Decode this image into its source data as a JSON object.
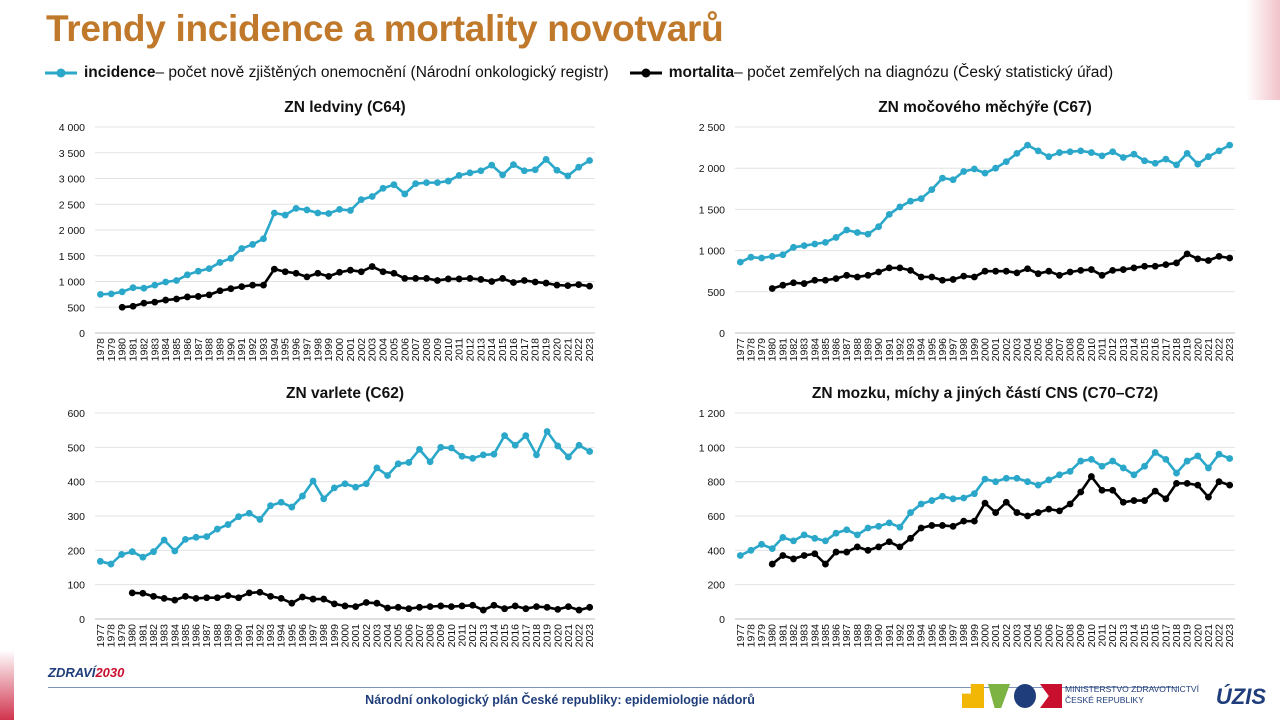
{
  "title": "Trendy incidence a mortality novotvarů",
  "legend": {
    "incidence_bold": "incidence",
    "incidence_rest": " – počet nově zjištěných onemocnění (Národní onkologický registr)",
    "mortalita_bold": "mortalita",
    "mortalita_rest": " – počet zemřelých na diagnózu (Český statistický úřad)",
    "incidence_color": "#2aa7c9",
    "mortalita_color": "#000000"
  },
  "chart_data": [
    {
      "type": "line",
      "title": "ZN ledviny (C64)",
      "x": [
        1978,
        1979,
        1980,
        1981,
        1982,
        1983,
        1984,
        1985,
        1986,
        1987,
        1988,
        1989,
        1990,
        1991,
        1992,
        1993,
        1994,
        1995,
        1996,
        1997,
        1998,
        1999,
        2000,
        2001,
        2002,
        2003,
        2004,
        2005,
        2006,
        2007,
        2008,
        2009,
        2010,
        2011,
        2012,
        2013,
        2014,
        2015,
        2016,
        2017,
        2018,
        2019,
        2020,
        2021,
        2022,
        2023
      ],
      "x_tick_labels": [
        "1978",
        "1979",
        "1980",
        "1981",
        "1982",
        "1983",
        "1984",
        "1985",
        "1986",
        "1987",
        "1988",
        "1989",
        "1990",
        "1991",
        "1992",
        "1993",
        "1994",
        "1995",
        "1996",
        "1997",
        "1998",
        "1999",
        "2000",
        "2001",
        "2002",
        "2003",
        "2004",
        "2005",
        "2006",
        "2007",
        "2008",
        "2009",
        "2010",
        "2011",
        "2012",
        "2013",
        "2014",
        "2015",
        "2016",
        "2017",
        "2018",
        "2019",
        "2020",
        "2021",
        "2022",
        "2023"
      ],
      "ylim": [
        0,
        4000
      ],
      "yticks": [
        0,
        500,
        1000,
        1500,
        2000,
        2500,
        3000,
        3500,
        4000
      ],
      "ytick_labels": [
        "0",
        "500",
        "1 000",
        "1 500",
        "2 000",
        "2 500",
        "3 000",
        "3 500",
        "4 000"
      ],
      "grid": true,
      "series": [
        {
          "name": "incidence",
          "values": [
            750,
            760,
            800,
            880,
            870,
            930,
            990,
            1020,
            1130,
            1200,
            1250,
            1370,
            1450,
            1640,
            1720,
            1830,
            2330,
            2290,
            2420,
            2390,
            2330,
            2320,
            2400,
            2380,
            2590,
            2650,
            2810,
            2880,
            2700,
            2900,
            2920,
            2920,
            2950,
            3060,
            3110,
            3150,
            3260,
            3070,
            3270,
            3150,
            3170,
            3370,
            3160,
            3050,
            3220,
            3350
          ]
        },
        {
          "name": "mortalita",
          "values": [
            null,
            null,
            500,
            520,
            580,
            600,
            640,
            660,
            700,
            710,
            740,
            820,
            860,
            900,
            930,
            930,
            1240,
            1190,
            1160,
            1090,
            1160,
            1100,
            1180,
            1220,
            1190,
            1290,
            1190,
            1160,
            1060,
            1060,
            1060,
            1020,
            1050,
            1050,
            1060,
            1040,
            1000,
            1060,
            980,
            1020,
            990,
            970,
            930,
            920,
            940,
            910
          ]
        }
      ]
    },
    {
      "type": "line",
      "title": "ZN močového měchýře (C67)",
      "x": [
        1977,
        1978,
        1979,
        1980,
        1981,
        1982,
        1983,
        1984,
        1985,
        1986,
        1987,
        1988,
        1989,
        1990,
        1991,
        1992,
        1993,
        1994,
        1995,
        1996,
        1997,
        1998,
        1999,
        2000,
        2001,
        2002,
        2003,
        2004,
        2005,
        2006,
        2007,
        2008,
        2009,
        2010,
        2011,
        2012,
        2013,
        2014,
        2015,
        2016,
        2017,
        2018,
        2019,
        2020,
        2021,
        2022,
        2023
      ],
      "x_tick_labels": [
        "1977",
        "1978",
        "1979",
        "1980",
        "1981",
        "1982",
        "1983",
        "1984",
        "1985",
        "1986",
        "1987",
        "1988",
        "1989",
        "1990",
        "1991",
        "1992",
        "1993",
        "1994",
        "1995",
        "1996",
        "1997",
        "1998",
        "1999",
        "2000",
        "2001",
        "2002",
        "2003",
        "2004",
        "2005",
        "2006",
        "2007",
        "2008",
        "2009",
        "2010",
        "2011",
        "2012",
        "2013",
        "2014",
        "2015",
        "2016",
        "2017",
        "2018",
        "2019",
        "2020",
        "2021",
        "2022",
        "2023"
      ],
      "ylim": [
        0,
        2500
      ],
      "yticks": [
        0,
        500,
        1000,
        1500,
        2000,
        2500
      ],
      "ytick_labels": [
        "0",
        "500",
        "1 000",
        "1 500",
        "2 000",
        "2 500"
      ],
      "grid": true,
      "series": [
        {
          "name": "incidence",
          "values": [
            860,
            920,
            910,
            930,
            950,
            1040,
            1060,
            1080,
            1100,
            1160,
            1250,
            1220,
            1200,
            1290,
            1440,
            1530,
            1600,
            1630,
            1740,
            1880,
            1860,
            1960,
            1990,
            1940,
            2000,
            2080,
            2180,
            2280,
            2210,
            2140,
            2190,
            2200,
            2210,
            2190,
            2150,
            2200,
            2130,
            2170,
            2090,
            2060,
            2110,
            2040,
            2180,
            2050,
            2140,
            2210,
            2280
          ]
        },
        {
          "name": "mortalita",
          "values": [
            null,
            null,
            null,
            540,
            580,
            610,
            600,
            640,
            640,
            660,
            700,
            680,
            700,
            740,
            790,
            790,
            760,
            680,
            680,
            640,
            650,
            690,
            680,
            750,
            750,
            750,
            730,
            780,
            720,
            750,
            700,
            740,
            760,
            770,
            700,
            760,
            770,
            790,
            810,
            810,
            830,
            850,
            960,
            900,
            880,
            930,
            910
          ]
        }
      ]
    },
    {
      "type": "line",
      "title": "ZN varlete (C62)",
      "x": [
        1977,
        1978,
        1979,
        1980,
        1981,
        1982,
        1983,
        1984,
        1985,
        1986,
        1987,
        1988,
        1989,
        1990,
        1991,
        1992,
        1993,
        1994,
        1995,
        1996,
        1997,
        1998,
        1999,
        2000,
        2001,
        2002,
        2003,
        2004,
        2005,
        2006,
        2007,
        2008,
        2009,
        2010,
        2011,
        2012,
        2013,
        2014,
        2015,
        2016,
        2017,
        2018,
        2019,
        2020,
        2021,
        2022,
        2023
      ],
      "x_tick_labels": [
        "1977",
        "1978",
        "1979",
        "1980",
        "1981",
        "1982",
        "1983",
        "1984",
        "1985",
        "1986",
        "1987",
        "1988",
        "1989",
        "1990",
        "1991",
        "1992",
        "1993",
        "1994",
        "1995",
        "1996",
        "1997",
        "1998",
        "1999",
        "2000",
        "2001",
        "2002",
        "2003",
        "2004",
        "2005",
        "2006",
        "2007",
        "2008",
        "2009",
        "2010",
        "2011",
        "2012",
        "2013",
        "2014",
        "2015",
        "2016",
        "2017",
        "2018",
        "2019",
        "2020",
        "2021",
        "2022",
        "2023"
      ],
      "ylim": [
        0,
        600
      ],
      "yticks": [
        0,
        100,
        200,
        300,
        400,
        500,
        600
      ],
      "ytick_labels": [
        "0",
        "100",
        "200",
        "300",
        "400",
        "500",
        "600"
      ],
      "grid": true,
      "series": [
        {
          "name": "incidence",
          "values": [
            168,
            160,
            188,
            196,
            180,
            196,
            230,
            198,
            232,
            238,
            240,
            262,
            275,
            298,
            308,
            290,
            330,
            340,
            326,
            358,
            402,
            350,
            382,
            394,
            384,
            394,
            440,
            418,
            452,
            456,
            494,
            458,
            500,
            498,
            474,
            468,
            478,
            480,
            534,
            506,
            534,
            478,
            546,
            504,
            472,
            506,
            488
          ]
        },
        {
          "name": "mortalita",
          "values": [
            null,
            null,
            null,
            76,
            75,
            66,
            60,
            55,
            66,
            60,
            62,
            62,
            68,
            62,
            76,
            78,
            66,
            60,
            46,
            64,
            58,
            58,
            44,
            38,
            36,
            48,
            46,
            32,
            34,
            30,
            34,
            36,
            38,
            36,
            38,
            40,
            26,
            40,
            30,
            38,
            30,
            36,
            34,
            28,
            36,
            26,
            34
          ]
        }
      ]
    },
    {
      "type": "line",
      "title": "ZN mozku, míchy a jiných částí CNS (C70–C72)",
      "x": [
        1977,
        1978,
        1979,
        1980,
        1981,
        1982,
        1983,
        1984,
        1985,
        1986,
        1987,
        1988,
        1989,
        1990,
        1991,
        1992,
        1993,
        1994,
        1995,
        1996,
        1997,
        1998,
        1999,
        2000,
        2001,
        2002,
        2003,
        2004,
        2005,
        2006,
        2007,
        2008,
        2009,
        2010,
        2011,
        2012,
        2013,
        2014,
        2015,
        2016,
        2017,
        2018,
        2019,
        2020,
        2021,
        2022,
        2023
      ],
      "x_tick_labels": [
        "1977",
        "1978",
        "1979",
        "1980",
        "1981",
        "1982",
        "1983",
        "1984",
        "1985",
        "1986",
        "1987",
        "1988",
        "1989",
        "1990",
        "1991",
        "1992",
        "1993",
        "1994",
        "1995",
        "1996",
        "1997",
        "1998",
        "1999",
        "2000",
        "2001",
        "2002",
        "2003",
        "2004",
        "2005",
        "2006",
        "2007",
        "2008",
        "2009",
        "2010",
        "2011",
        "2012",
        "2013",
        "2014",
        "2015",
        "2016",
        "2017",
        "2018",
        "2019",
        "2020",
        "2021",
        "2022",
        "2023"
      ],
      "ylim": [
        0,
        1200
      ],
      "yticks": [
        0,
        200,
        400,
        600,
        800,
        1000,
        1200
      ],
      "ytick_labels": [
        "0",
        "200",
        "400",
        "600",
        "800",
        "1 000",
        "1 200"
      ],
      "grid": true,
      "series": [
        {
          "name": "incidence",
          "values": [
            370,
            400,
            435,
            410,
            475,
            455,
            490,
            470,
            455,
            500,
            520,
            490,
            530,
            540,
            560,
            535,
            620,
            670,
            690,
            715,
            700,
            705,
            730,
            815,
            800,
            820,
            820,
            800,
            780,
            810,
            840,
            860,
            920,
            930,
            890,
            920,
            880,
            840,
            890,
            970,
            930,
            850,
            920,
            950,
            880,
            960,
            935
          ]
        },
        {
          "name": "mortalita",
          "values": [
            null,
            null,
            null,
            320,
            370,
            350,
            370,
            380,
            320,
            390,
            390,
            420,
            400,
            420,
            450,
            420,
            470,
            530,
            545,
            545,
            540,
            570,
            570,
            675,
            620,
            680,
            620,
            600,
            620,
            640,
            630,
            670,
            740,
            830,
            750,
            750,
            680,
            690,
            690,
            745,
            700,
            790,
            790,
            780,
            710,
            800,
            780
          ]
        }
      ]
    }
  ],
  "footer": {
    "text": "Národní onkologický plán České republiky: epidemiologie nádorů",
    "logo_left_a": "ZDRAVÍ",
    "logo_left_b": "2030",
    "ministry_line1": "MINISTERSTVO ZDRAVOTNICTVÍ",
    "ministry_line2": "ČESKÉ REPUBLIKY",
    "uzis": "ÚZIS"
  }
}
